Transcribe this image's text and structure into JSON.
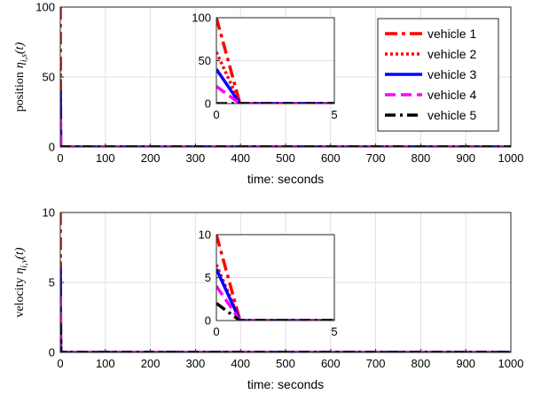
{
  "series_styles": [
    {
      "name": "vehicle 1",
      "color": "#ff0000",
      "dash": "14,5,4,5"
    },
    {
      "name": "vehicle 2",
      "color": "#ff0000",
      "dash": "3,3"
    },
    {
      "name": "vehicle 3",
      "color": "#0000ff",
      "dash": ""
    },
    {
      "name": "vehicle 4",
      "color": "#ff00ff",
      "dash": "12,6"
    },
    {
      "name": "vehicle 5",
      "color": "#000000",
      "dash": "12,5,3,5"
    }
  ],
  "chart_data": [
    {
      "type": "line",
      "panel": "top",
      "xlabel": "time: seconds",
      "ylabel_main": "position",
      "ylabel_symbol": "η",
      "ylabel_subscript": "i,s",
      "ylabel_arg": "(t)",
      "xlim": [
        0,
        1000
      ],
      "ylim": [
        0,
        100
      ],
      "xticks": [
        "0",
        "100",
        "200",
        "300",
        "400",
        "500",
        "600",
        "700",
        "800",
        "900",
        "1000"
      ],
      "yticks": [
        "0",
        "50",
        "100"
      ],
      "xtick_values": [
        0,
        100,
        200,
        300,
        400,
        500,
        600,
        700,
        800,
        900,
        1000
      ],
      "ytick_values": [
        0,
        50,
        100
      ],
      "grid": true,
      "legend_position": "top-right",
      "legend": [
        "vehicle 1",
        "vehicle 2",
        "vehicle 3",
        "vehicle 4",
        "vehicle 5"
      ],
      "series": [
        {
          "name": "vehicle 1",
          "x": [
            0,
            1,
            1000
          ],
          "y": [
            100,
            0,
            0
          ]
        },
        {
          "name": "vehicle 2",
          "x": [
            0,
            1,
            1000
          ],
          "y": [
            60,
            0,
            0
          ]
        },
        {
          "name": "vehicle 3",
          "x": [
            0,
            1,
            1000
          ],
          "y": [
            40,
            0,
            0
          ]
        },
        {
          "name": "vehicle 4",
          "x": [
            0,
            1,
            1000
          ],
          "y": [
            20,
            0,
            0
          ]
        },
        {
          "name": "vehicle 5",
          "x": [
            0,
            1,
            1000
          ],
          "y": [
            0,
            0,
            0
          ]
        }
      ],
      "inset": {
        "xlim": [
          0,
          5
        ],
        "ylim": [
          0,
          100
        ],
        "xticks": [
          "0",
          "5"
        ],
        "yticks": [
          "0",
          "50",
          "100"
        ],
        "xtick_values": [
          0,
          5
        ],
        "ytick_values": [
          0,
          50,
          100
        ],
        "series": [
          {
            "name": "vehicle 1",
            "x": [
              0,
              1,
              5
            ],
            "y": [
              100,
              0,
              0
            ]
          },
          {
            "name": "vehicle 2",
            "x": [
              0,
              1,
              5
            ],
            "y": [
              60,
              0,
              0
            ]
          },
          {
            "name": "vehicle 3",
            "x": [
              0,
              1,
              5
            ],
            "y": [
              40,
              0,
              0
            ]
          },
          {
            "name": "vehicle 4",
            "x": [
              0,
              1,
              5
            ],
            "y": [
              20,
              0,
              0
            ]
          },
          {
            "name": "vehicle 5",
            "x": [
              0,
              1,
              5
            ],
            "y": [
              0,
              0,
              0
            ]
          }
        ]
      }
    },
    {
      "type": "line",
      "panel": "bottom",
      "xlabel": "time: seconds",
      "ylabel_main": "velocity",
      "ylabel_symbol": "η",
      "ylabel_subscript": "i,v",
      "ylabel_arg": "(t)",
      "xlim": [
        0,
        1000
      ],
      "ylim": [
        0,
        10
      ],
      "xticks": [
        "0",
        "100",
        "200",
        "300",
        "400",
        "500",
        "600",
        "700",
        "800",
        "900",
        "1000"
      ],
      "yticks": [
        "0",
        "5",
        "10"
      ],
      "xtick_values": [
        0,
        100,
        200,
        300,
        400,
        500,
        600,
        700,
        800,
        900,
        1000
      ],
      "ytick_values": [
        0,
        5,
        10
      ],
      "grid": true,
      "series": [
        {
          "name": "vehicle 1",
          "x": [
            0,
            1,
            1000
          ],
          "y": [
            10,
            0,
            0
          ]
        },
        {
          "name": "vehicle 2",
          "x": [
            0,
            1,
            1000
          ],
          "y": [
            6.5,
            0,
            0
          ]
        },
        {
          "name": "vehicle 3",
          "x": [
            0,
            1,
            1000
          ],
          "y": [
            6,
            0,
            0
          ]
        },
        {
          "name": "vehicle 4",
          "x": [
            0,
            1,
            1000
          ],
          "y": [
            4,
            0,
            0
          ]
        },
        {
          "name": "vehicle 5",
          "x": [
            0,
            1,
            1000
          ],
          "y": [
            2,
            0,
            0
          ]
        }
      ],
      "inset": {
        "xlim": [
          0,
          5
        ],
        "ylim": [
          0,
          10
        ],
        "xticks": [
          "0",
          "5"
        ],
        "yticks": [
          "0",
          "5",
          "10"
        ],
        "xtick_values": [
          0,
          5
        ],
        "ytick_values": [
          0,
          5,
          10
        ],
        "series": [
          {
            "name": "vehicle 1",
            "x": [
              0,
              1,
              5
            ],
            "y": [
              10,
              0,
              0
            ]
          },
          {
            "name": "vehicle 2",
            "x": [
              0,
              1,
              5
            ],
            "y": [
              6.5,
              0,
              0
            ]
          },
          {
            "name": "vehicle 3",
            "x": [
              0,
              1,
              5
            ],
            "y": [
              6,
              0,
              0
            ]
          },
          {
            "name": "vehicle 4",
            "x": [
              0,
              1,
              5
            ],
            "y": [
              4,
              0,
              0
            ]
          },
          {
            "name": "vehicle 5",
            "x": [
              0,
              1,
              5
            ],
            "y": [
              2,
              0,
              0
            ]
          }
        ]
      }
    }
  ]
}
